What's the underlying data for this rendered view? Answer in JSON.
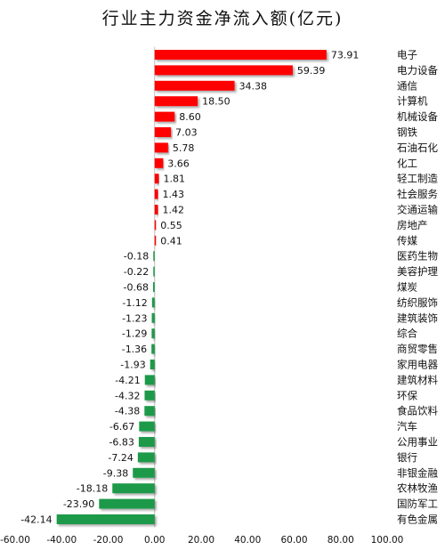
{
  "chart_data": {
    "type": "bar",
    "orientation": "horizontal",
    "title": "行业主力资金净流入额(亿元)",
    "categories": [
      "电子",
      "电力设备",
      "通信",
      "计算机",
      "机械设备",
      "钢铁",
      "石油石化",
      "化工",
      "轻工制造",
      "社会服务",
      "交通运输",
      "房地产",
      "传媒",
      "医药生物",
      "美容护理",
      "煤炭",
      "纺织服饰",
      "建筑装饰",
      "综合",
      "商贸零售",
      "家用电器",
      "建筑材料",
      "环保",
      "食品饮料",
      "汽车",
      "公用事业",
      "银行",
      "非银金融",
      "农林牧渔",
      "国防军工",
      "有色金属"
    ],
    "values": [
      73.91,
      59.39,
      34.38,
      18.5,
      8.6,
      7.03,
      5.78,
      3.66,
      1.81,
      1.43,
      1.42,
      0.55,
      0.41,
      -0.18,
      -0.22,
      -0.68,
      -1.12,
      -1.23,
      -1.29,
      -1.36,
      -1.93,
      -4.21,
      -4.32,
      -4.38,
      -6.67,
      -6.83,
      -7.24,
      -9.38,
      -18.18,
      -23.9,
      -42.14
    ],
    "value_labels": [
      "73.91",
      "59.39",
      "34.38",
      "18.50",
      "8.60",
      "7.03",
      "5.78",
      "3.66",
      "1.81",
      "1.43",
      "1.42",
      "0.55",
      "0.41",
      "-0.18",
      "-0.22",
      "-0.68",
      "-1.12",
      "-1.23",
      "-1.29",
      "-1.36",
      "-1.93",
      "-4.21",
      "-4.32",
      "-4.38",
      "-6.67",
      "-6.83",
      "-7.24",
      "-9.38",
      "-18.18",
      "-23.90",
      "-42.14"
    ],
    "xlim": [
      -60,
      100
    ],
    "xticks": [
      "-60.00",
      "-40.00",
      "-20.00",
      "0.00",
      "20.00",
      "40.00",
      "60.00",
      "80.00",
      "100.00"
    ],
    "xtick_values": [
      -60,
      -40,
      -20,
      0,
      20,
      40,
      60,
      80,
      100
    ],
    "grid": false,
    "legend": "none",
    "colors": {
      "positive": "#ff0000",
      "negative": "#1f9a48"
    }
  }
}
